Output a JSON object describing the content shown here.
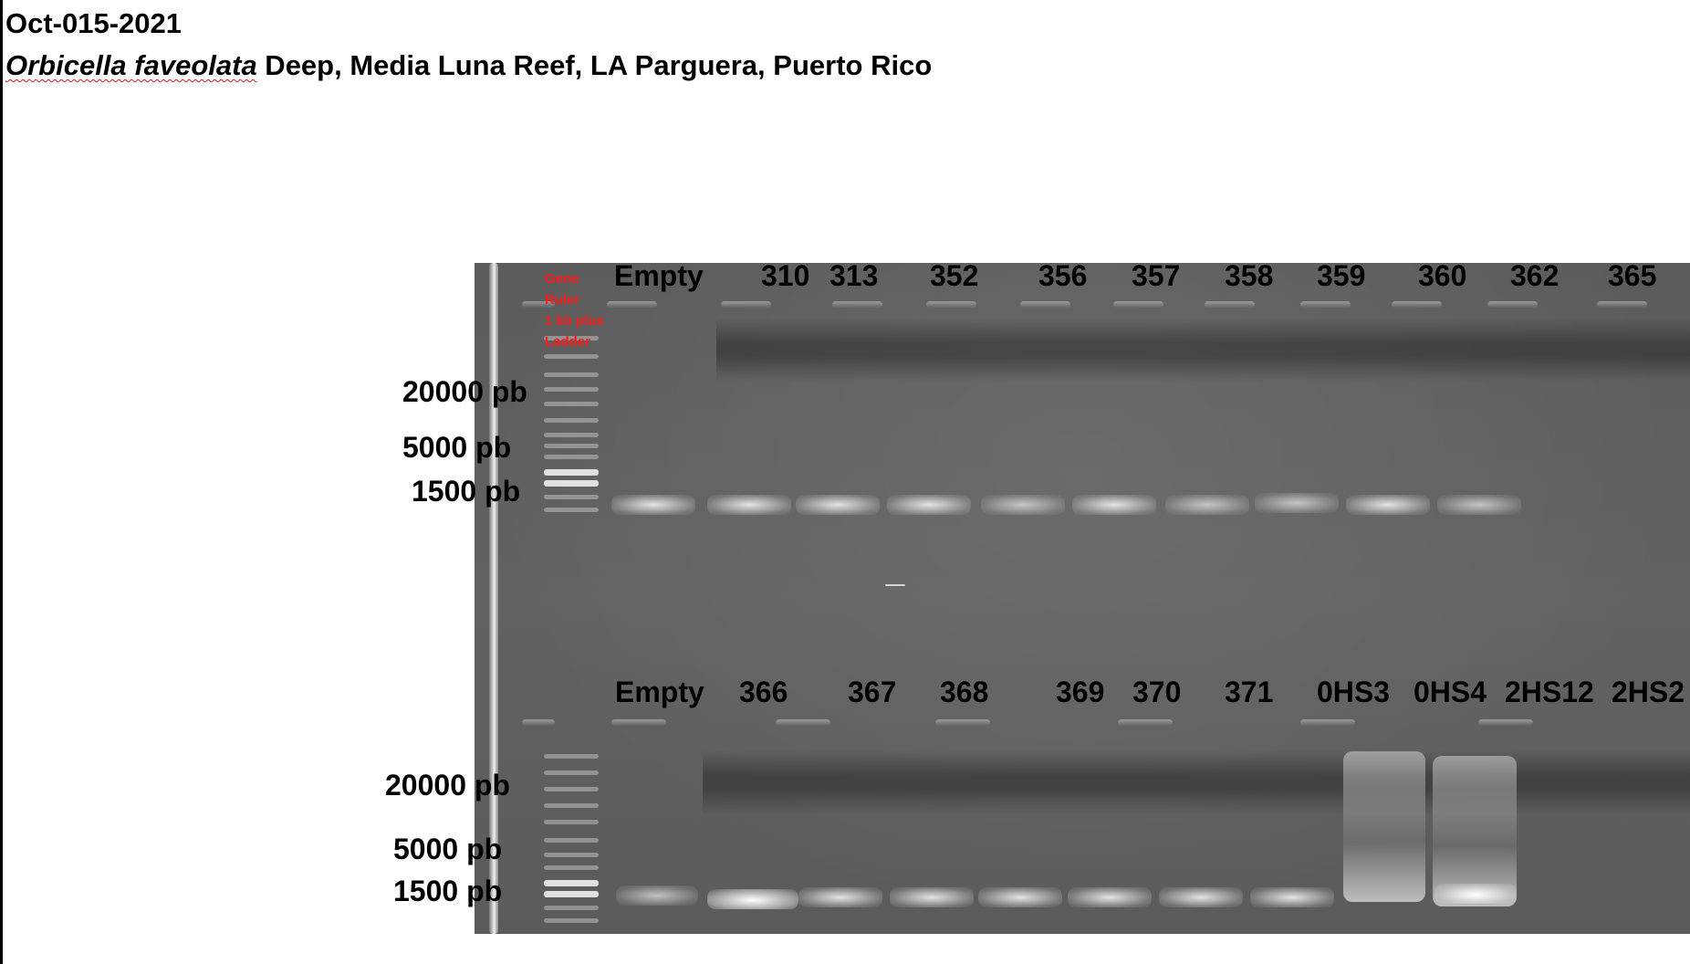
{
  "header": {
    "date": "Oct-015-2021",
    "species": "Orbicella faveolata",
    "location": " Deep, Media Luna Reef, LA Parguera, Puerto Rico"
  },
  "ladder": {
    "lines": [
      "Gene",
      "Ruler",
      "1 kb plus",
      "Ladder"
    ],
    "label_color": "#ff1a1a"
  },
  "top_row": {
    "lanes": [
      "Empty",
      "310",
      "313",
      "352",
      "356",
      "357",
      "358",
      "359",
      "360",
      "362",
      "365"
    ],
    "sizes": [
      "20000 pb",
      "5000 pb",
      "1500 pb"
    ]
  },
  "bottom_row": {
    "lanes": [
      "Empty",
      "366",
      "367",
      "368",
      "369",
      "370",
      "371",
      "0HS3",
      "0HS4",
      "2HS12",
      "2HS2"
    ],
    "sizes": [
      "20000 pb",
      "5000 pb",
      "1500 pb"
    ]
  },
  "colors": {
    "gel": "#5f5f5f",
    "text": "#000000"
  }
}
